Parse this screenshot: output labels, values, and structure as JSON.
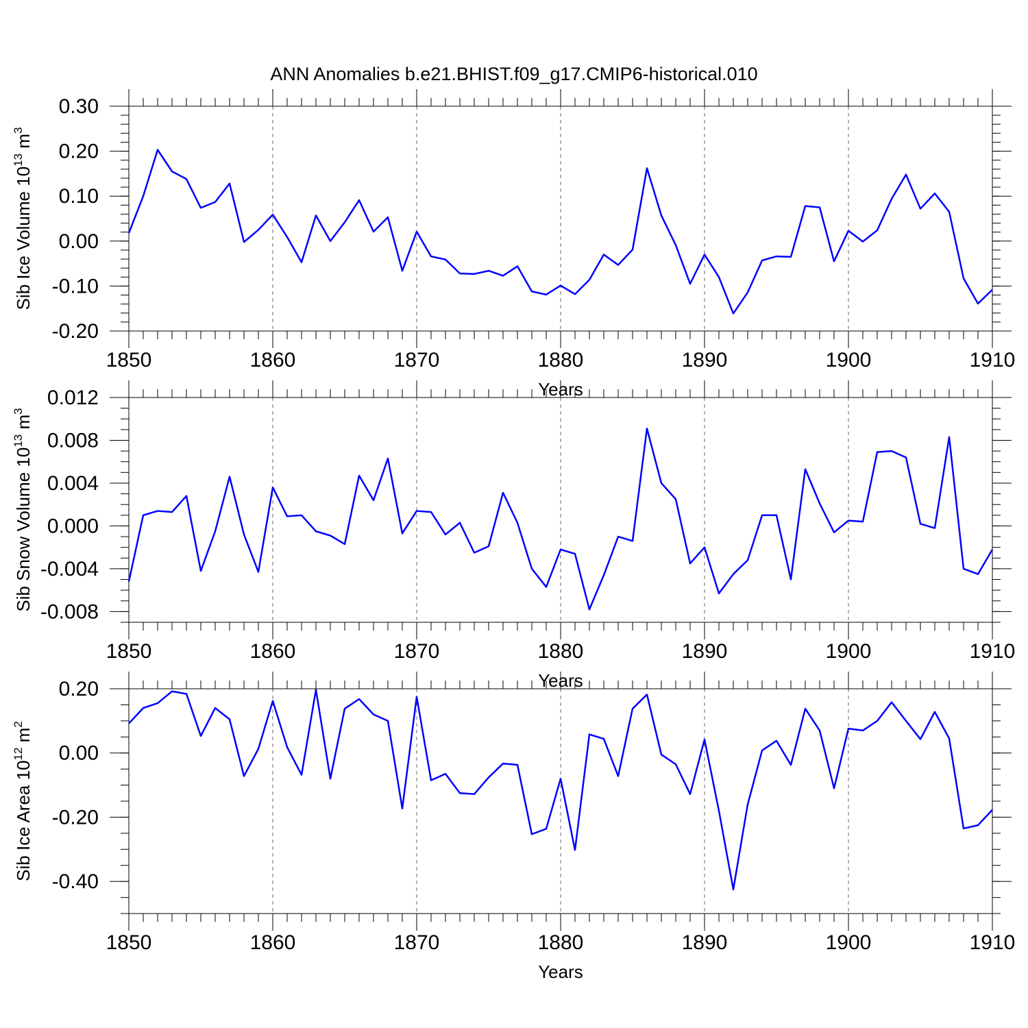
{
  "chart_data": [
    {
      "type": "line",
      "title": "ANN Anomalies b.e21.BHIST.f09_g17.CMIP6-historical.010",
      "xlabel": "Years",
      "ylabel": "Sib Ice Volume 10",
      "ylabel_exp": "13",
      "ylabel_unit": " m",
      "ylabel_unit_exp": "3",
      "xlim": [
        1850,
        1910
      ],
      "ylim": [
        -0.2,
        0.3
      ],
      "xticks": [
        1850,
        1860,
        1870,
        1880,
        1890,
        1900,
        1910
      ],
      "yticks": [
        -0.2,
        -0.1,
        0.0,
        0.1,
        0.2,
        0.3
      ],
      "ytick_labels": [
        "-0.20",
        "-0.10",
        "0.00",
        "0.10",
        "0.20",
        "0.30"
      ],
      "yminor_step": 0.02,
      "y_ref_line": 0.3,
      "color": "#0000ff",
      "x_start": 1850,
      "values": [
        0.018,
        0.1,
        0.203,
        0.155,
        0.138,
        0.074,
        0.087,
        0.128,
        -0.002,
        0.025,
        0.059,
        0.009,
        -0.047,
        0.057,
        0.0,
        0.042,
        0.091,
        0.021,
        0.053,
        -0.066,
        0.021,
        -0.034,
        -0.041,
        -0.072,
        -0.073,
        -0.066,
        -0.077,
        -0.056,
        -0.112,
        -0.119,
        -0.099,
        -0.118,
        -0.086,
        -0.03,
        -0.053,
        -0.019,
        0.162,
        0.057,
        -0.009,
        -0.095,
        -0.03,
        -0.08,
        -0.161,
        -0.114,
        -0.043,
        -0.034,
        -0.035,
        0.078,
        0.075,
        -0.045,
        0.023,
        -0.001,
        0.024,
        0.094,
        0.148,
        0.072,
        0.106,
        0.065,
        -0.083,
        -0.139,
        -0.108
      ]
    },
    {
      "type": "line",
      "xlabel": "Years",
      "ylabel": "Sib Snow Volume 10",
      "ylabel_exp": "13",
      "ylabel_unit": " m",
      "ylabel_unit_exp": "3",
      "xlim": [
        1850,
        1910
      ],
      "ylim": [
        -0.009,
        0.012
      ],
      "xticks": [
        1850,
        1860,
        1870,
        1880,
        1890,
        1900,
        1910
      ],
      "yticks": [
        -0.008,
        -0.004,
        0.0,
        0.004,
        0.008,
        0.012
      ],
      "ytick_labels": [
        "-0.008",
        "-0.004",
        "0.000",
        "0.004",
        "0.008",
        "0.012"
      ],
      "yminor_step": 0.001,
      "y_ref_line": 0.012,
      "color": "#0000ff",
      "x_start": 1850,
      "values": [
        -0.0052,
        0.001,
        0.0014,
        0.0013,
        0.0028,
        -0.0042,
        -0.0005,
        0.0046,
        -0.0008,
        -0.0043,
        0.0036,
        0.0009,
        0.001,
        -0.0005,
        -0.0009,
        -0.0017,
        0.0047,
        0.0024,
        0.0063,
        -0.0007,
        0.0014,
        0.0013,
        -0.0008,
        0.0003,
        -0.0025,
        -0.0019,
        0.0031,
        0.0003,
        -0.004,
        -0.0057,
        -0.0022,
        -0.0026,
        -0.0078,
        -0.0046,
        -0.001,
        -0.0014,
        0.0091,
        0.004,
        0.0025,
        -0.0035,
        -0.002,
        -0.0063,
        -0.0045,
        -0.0032,
        0.001,
        0.001,
        -0.005,
        0.0053,
        0.0021,
        -0.0006,
        0.0005,
        0.0004,
        0.0069,
        0.007,
        0.0064,
        0.0002,
        -0.0002,
        0.0083,
        -0.004,
        -0.0045,
        -0.0022
      ]
    },
    {
      "type": "line",
      "xlabel": "Years",
      "ylabel": "Sib Ice Area 10",
      "ylabel_exp": "12",
      "ylabel_unit": " m",
      "ylabel_unit_exp": "2",
      "xlim": [
        1850,
        1910
      ],
      "ylim": [
        -0.5,
        0.2
      ],
      "xticks": [
        1850,
        1860,
        1870,
        1880,
        1890,
        1900,
        1910
      ],
      "yticks": [
        -0.4,
        -0.2,
        0.0,
        0.2
      ],
      "ytick_labels": [
        "-0.40",
        "-0.20",
        "0.00",
        "0.20"
      ],
      "yminor_step": 0.05,
      "y_ref_line": 0.2,
      "color": "#0000ff",
      "x_start": 1850,
      "values": [
        0.092,
        0.14,
        0.155,
        0.192,
        0.184,
        0.053,
        0.14,
        0.105,
        -0.072,
        0.013,
        0.162,
        0.018,
        -0.068,
        0.197,
        -0.08,
        0.138,
        0.168,
        0.12,
        0.1,
        -0.173,
        0.175,
        -0.085,
        -0.065,
        -0.125,
        -0.128,
        -0.076,
        -0.033,
        -0.037,
        -0.253,
        -0.236,
        -0.08,
        -0.302,
        0.058,
        0.044,
        -0.072,
        0.138,
        0.182,
        -0.005,
        -0.035,
        -0.128,
        0.042,
        -0.18,
        -0.425,
        -0.16,
        0.008,
        0.038,
        -0.037,
        0.138,
        0.07,
        -0.11,
        0.076,
        0.07,
        0.1,
        0.158,
        0.1,
        0.043,
        0.128,
        0.045,
        -0.235,
        -0.225,
        -0.177
      ]
    }
  ]
}
